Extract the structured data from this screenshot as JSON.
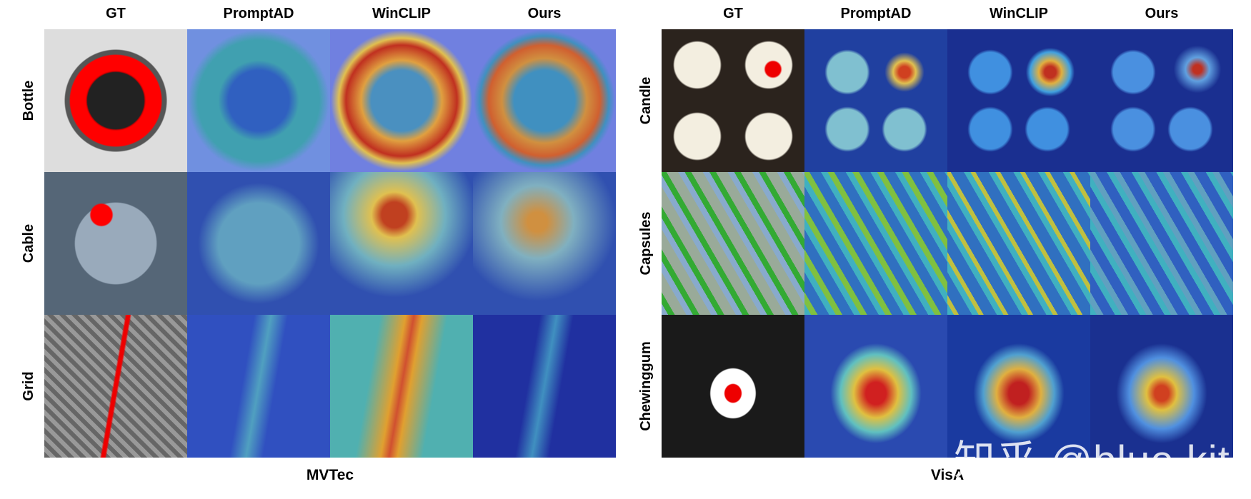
{
  "panels": [
    {
      "columns": [
        "GT",
        "PromptAD",
        "WinCLIP",
        "Ours"
      ],
      "rows": [
        "Bottle",
        "Cable",
        "Grid"
      ],
      "caption": "MVTec"
    },
    {
      "columns": [
        "GT",
        "PromptAD",
        "WinCLIP",
        "Ours"
      ],
      "rows": [
        "Candle",
        "Capsules",
        "Chewinggum"
      ],
      "caption": "VisA"
    }
  ],
  "watermark": "知乎 @blue kite"
}
